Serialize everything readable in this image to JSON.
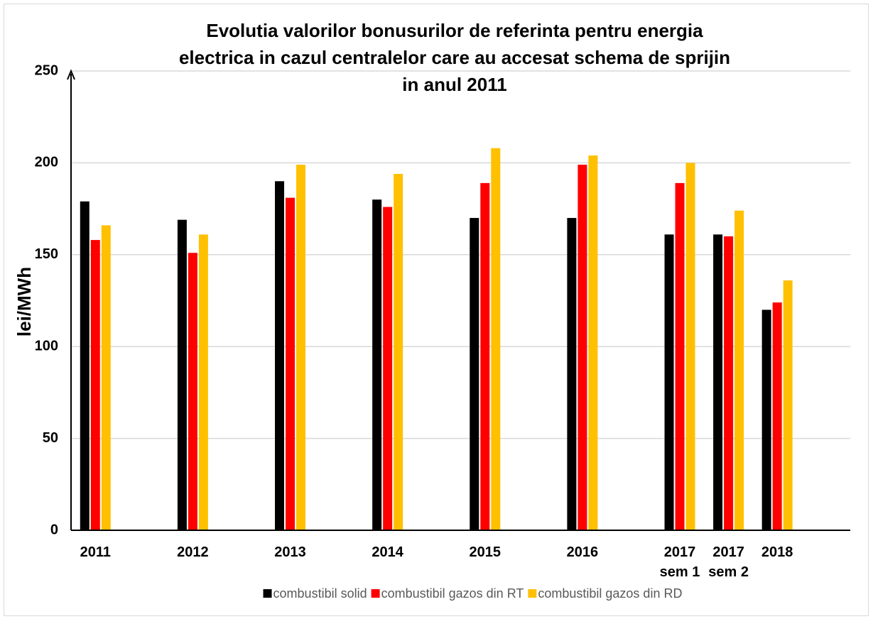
{
  "chart_data": {
    "type": "bar",
    "title": [
      "Evolutia valorilor bonusurilor de referinta pentru energia",
      "electrica in cazul centralelor care au accesat schema de sprijin",
      "in anul 2011"
    ],
    "y_label": "lei/MWh",
    "categories": [
      "2011",
      null,
      "2012",
      null,
      "2013",
      null,
      "2014",
      null,
      "2015",
      null,
      "2016",
      null,
      "2017\nsem 1",
      "2017\nsem 2",
      "2018",
      null
    ],
    "series": [
      {
        "name": "combustibil solid",
        "color": "#000000",
        "values": [
          179,
          null,
          169,
          null,
          190,
          null,
          180,
          null,
          170,
          null,
          170,
          null,
          161,
          161,
          120,
          null
        ]
      },
      {
        "name": "combustibil gazos din RT",
        "color": "#ff0000",
        "values": [
          158,
          null,
          151,
          null,
          181,
          null,
          176,
          null,
          189,
          null,
          199,
          null,
          189,
          160,
          124,
          null
        ]
      },
      {
        "name": "combustibil gazos din RD",
        "color": "#ffc000",
        "values": [
          166,
          null,
          161,
          null,
          199,
          null,
          194,
          null,
          208,
          null,
          204,
          null,
          200,
          174,
          136,
          null
        ]
      }
    ],
    "ylim": [
      0,
      250
    ],
    "yticks": [
      0,
      50,
      100,
      150,
      200,
      250
    ],
    "grid": true,
    "legend": "bottom"
  }
}
